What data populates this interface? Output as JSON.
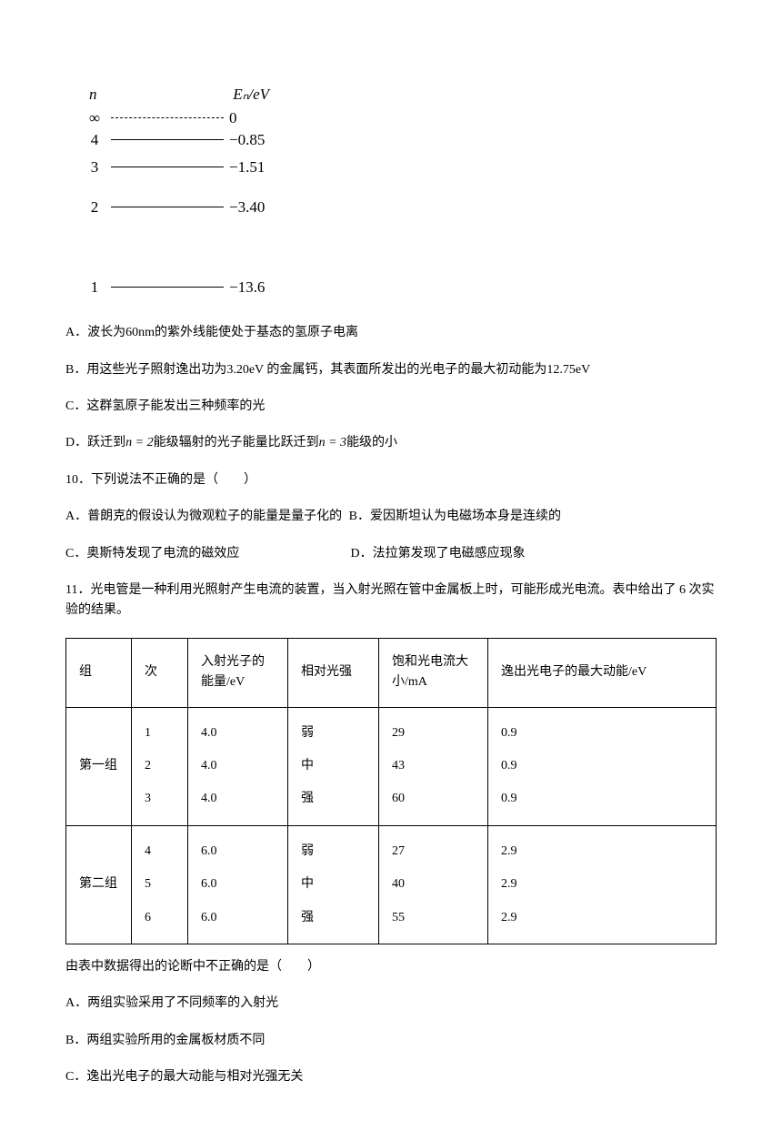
{
  "diagram": {
    "n_label": "n",
    "e_label": "Eₙ/eV",
    "levels": [
      {
        "n": "∞",
        "e": "0",
        "dashed": true,
        "gap": ""
      },
      {
        "n": "4",
        "e": "−0.85",
        "dashed": false,
        "gap": "gap-s"
      },
      {
        "n": "3",
        "e": "−1.51",
        "dashed": false,
        "gap": "gap-m"
      },
      {
        "n": "2",
        "e": "−3.40",
        "dashed": false,
        "gap": "gap-l"
      },
      {
        "n": "1",
        "e": "−13.6",
        "dashed": false,
        "gap": ""
      }
    ]
  },
  "options": {
    "a": "A．波长为60nm的紫外线能使处于基态的氢原子电离",
    "b": "B．用这些光子照射逸出功为3.20eV 的金属钙，其表面所发出的光电子的最大初动能为12.75eV",
    "c": "C．这群氢原子能发出三种频率的光",
    "d_prefix": "D．跃迁到",
    "d_n2": "n = 2",
    "d_mid": "能级辐射的光子能量比跃迁到",
    "d_n3": "n = 3",
    "d_suffix": "能级的小"
  },
  "q10": {
    "stem": "10．下列说法不正确的是（　　）",
    "a": "A．普朗克的假设认为微观粒子的能量是量子化的",
    "b": "B．爱因斯坦认为电磁场本身是连续的",
    "c": "C．奥斯特发现了电流的磁效应",
    "d": "D．法拉第发现了电磁感应现象"
  },
  "q11": {
    "stem": "11．光电管是一种利用光照射产生电流的装置，当入射光照在管中金属板上时，可能形成光电流。表中给出了 6 次实验的结果。",
    "table": {
      "headers": {
        "group": "组",
        "trial": "次",
        "energy": "入射光子的能量/eV",
        "intensity": "相对光强",
        "current": "饱和光电流大小/mA",
        "kinetic": "逸出光电子的最大动能/eV"
      },
      "group1": {
        "label": "第一组",
        "trials": "1\n2\n3",
        "energy": "4.0\n4.0\n4.0",
        "intensity": "弱\n中\n强",
        "current": "29\n43\n60",
        "kinetic": "0.9\n0.9\n0.9"
      },
      "group2": {
        "label": "第二组",
        "trials": "4\n5\n6",
        "energy": "6.0\n6.0\n6.0",
        "intensity": "弱\n中\n强",
        "current": "27\n40\n55",
        "kinetic": "2.9\n2.9\n2.9"
      }
    },
    "post": "由表中数据得出的论断中不正确的是（　　）",
    "a": "A．两组实验采用了不同频率的入射光",
    "b": "B．两组实验所用的金属板材质不同",
    "c": "C．逸出光电子的最大动能与相对光强无关"
  }
}
